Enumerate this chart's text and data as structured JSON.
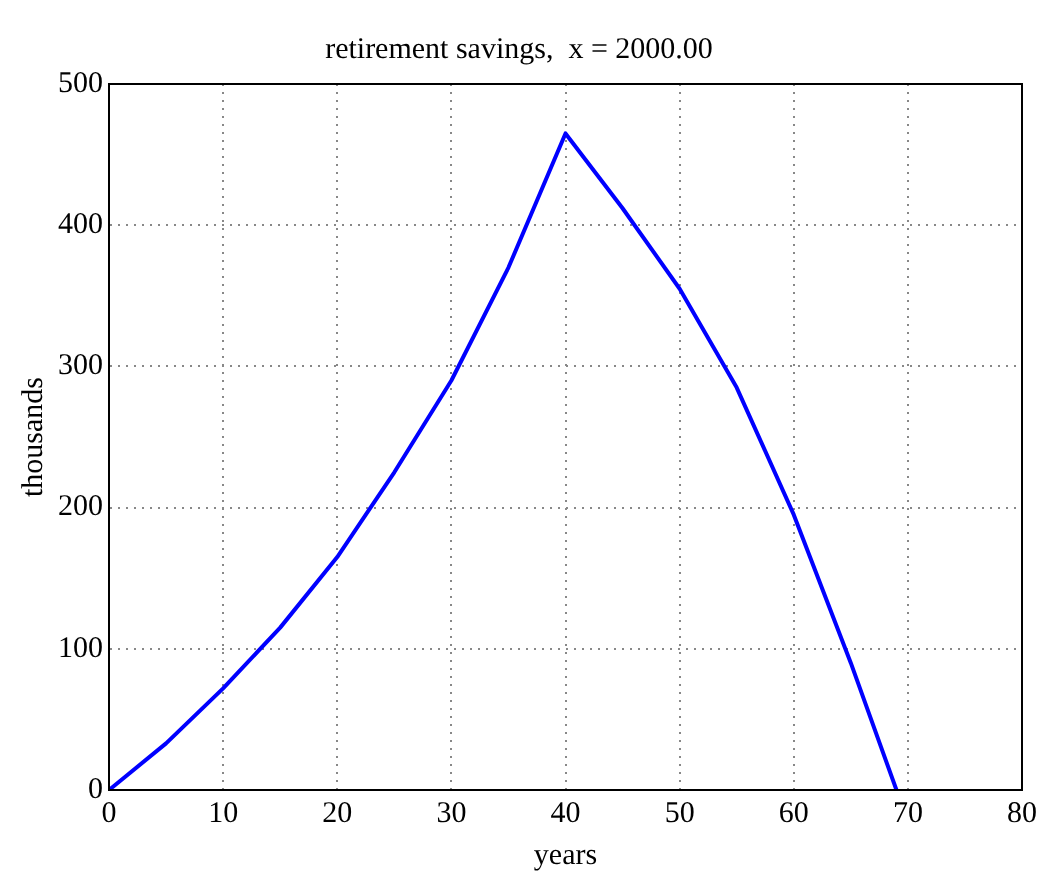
{
  "chart_data": {
    "type": "line",
    "title": "retirement savings,  x = 2000.00",
    "xlabel": "years",
    "ylabel": "thousands",
    "x": [
      0,
      5,
      10,
      15,
      20,
      25,
      30,
      35,
      40,
      45,
      50,
      55,
      60,
      65,
      69
    ],
    "series": [
      {
        "color": "#0000ff",
        "values": [
          0,
          33,
          72,
          115,
          165,
          225,
          290,
          370,
          465,
          412,
          355,
          285,
          195,
          90,
          0
        ]
      }
    ],
    "xlim": [
      0,
      80
    ],
    "xticks": [
      0,
      10,
      20,
      30,
      40,
      50,
      60,
      70,
      80
    ],
    "ylim": [
      0,
      500
    ],
    "yticks": [
      0,
      100,
      200,
      300,
      400,
      500
    ],
    "grid": true,
    "line_style": "solid",
    "marker": "none",
    "legend": false
  }
}
